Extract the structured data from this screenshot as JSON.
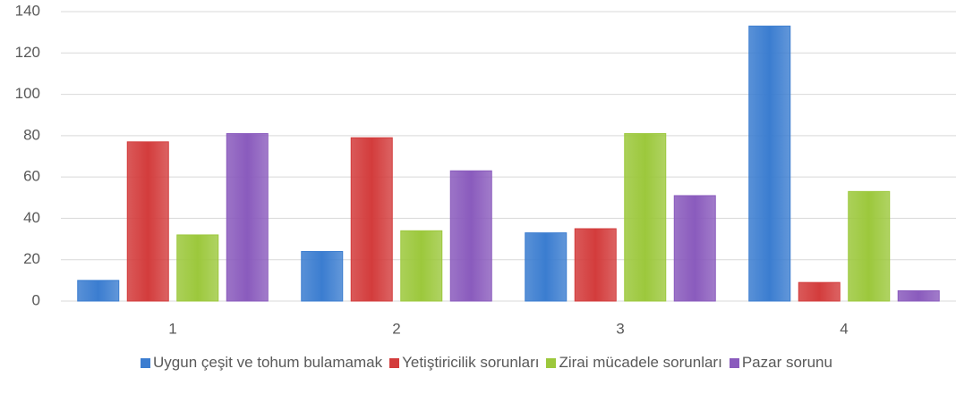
{
  "chart_data": {
    "type": "bar",
    "categories": [
      "1",
      "2",
      "3",
      "4"
    ],
    "series": [
      {
        "name": "Uygun çeşit ve tohum bulamamak",
        "color": "#3b7dd0",
        "values": [
          10,
          24,
          33,
          133
        ]
      },
      {
        "name": "Yetiştiricilik sorunları",
        "color": "#d33c3c",
        "values": [
          77,
          79,
          35,
          9
        ]
      },
      {
        "name": "Zirai mücadele sorunları",
        "color": "#9cc83c",
        "values": [
          32,
          34,
          81,
          53
        ]
      },
      {
        "name": "Pazar sorunu",
        "color": "#8a5bbd",
        "values": [
          81,
          63,
          51,
          5
        ]
      }
    ],
    "ylim": [
      0,
      140
    ],
    "yticks": [
      0,
      20,
      40,
      60,
      80,
      100,
      120,
      140
    ],
    "grid": true,
    "legend": "bottom"
  }
}
